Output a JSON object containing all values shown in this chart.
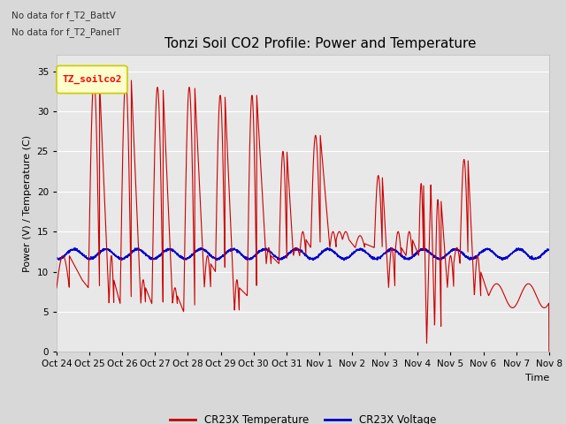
{
  "title": "Tonzi Soil CO2 Profile: Power and Temperature",
  "xlabel": "Time",
  "ylabel": "Power (V) / Temperature (C)",
  "top_left_text_line1": "No data for f_T2_BattV",
  "top_left_text_line2": "No data for f_T2_PanelT",
  "legend_label_text": "TZ_soilco2",
  "legend_entries": [
    "CR23X Temperature",
    "CR23X Voltage"
  ],
  "legend_colors": [
    "#cc0000",
    "#0000cc"
  ],
  "ylim": [
    0,
    37
  ],
  "yticks": [
    0,
    5,
    10,
    15,
    20,
    25,
    30,
    35
  ],
  "xtick_labels": [
    "Oct 24",
    "Oct 25",
    "Oct 26",
    "Oct 27",
    "Oct 28",
    "Oct 29",
    "Oct 30",
    "Oct 31",
    "Nov 1",
    "Nov 2",
    "Nov 3",
    "Nov 4",
    "Nov 5",
    "Nov 6",
    "Nov 7",
    "Nov 8"
  ],
  "bg_color": "#d8d8d8",
  "plot_bg_color": "#e8e8e8",
  "grid_color": "#ffffff",
  "temp_color": "#cc0000",
  "volt_color": "#0000cc",
  "title_fontsize": 11,
  "axis_label_fontsize": 8,
  "tick_fontsize": 7.5,
  "legend_box_color": "#ffffcc",
  "legend_box_edge": "#cccc00",
  "n_days": 15.5,
  "n_points": 3000
}
